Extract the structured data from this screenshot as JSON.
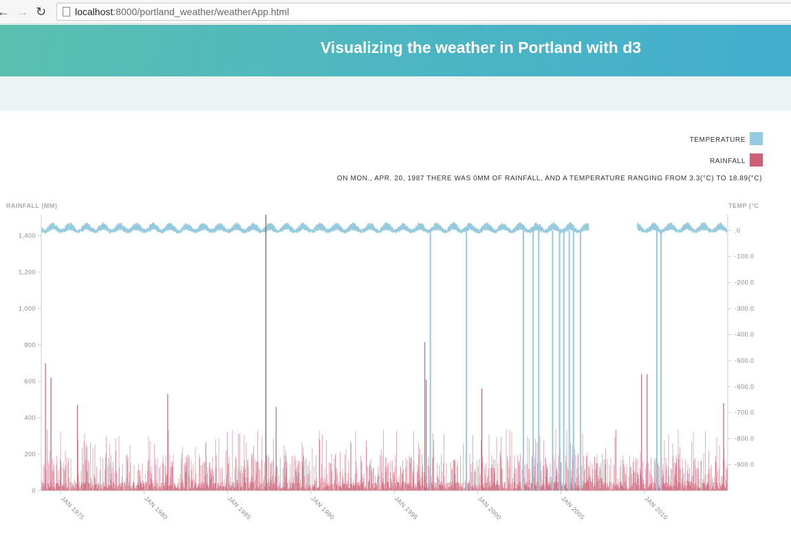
{
  "browser": {
    "url_host": "localhost",
    "url_rest": ":8000/portland_weather/weatherApp.html"
  },
  "header": {
    "title": "Visualizing the weather in Portland with d3"
  },
  "legend": {
    "temperature": {
      "label": "TEMPERATURE",
      "color": "#96cbdf"
    },
    "rainfall": {
      "label": "RAINFALL",
      "color": "#cd6078"
    }
  },
  "info": {
    "prefix": "On",
    "date": "Mon., Apr. 20, 1987",
    "mid1": "there was",
    "rain": "0mm",
    "mid2": "of rainfall, and a temperature ranging from",
    "tmin": "3.3(°C)",
    "mid3": "to",
    "tmax": "18.89(°C)"
  },
  "chart_data": {
    "type": "line",
    "y_left_label": "RAINFALL (MM)",
    "y_right_label": "TEMP (°C",
    "y_left_ticks": [
      "0",
      "200",
      "400",
      "600",
      "800",
      "1,000",
      "1,200",
      "1,400"
    ],
    "y_left_range": [
      0,
      1500
    ],
    "y_right_ticks": [
      ".0",
      "-100.0",
      "-200.0",
      "-300.0",
      "-400.0",
      "-500.0",
      "-600.0",
      "-700.0",
      "-800.0",
      "-900.0"
    ],
    "y_right_range": [
      -1000,
      50
    ],
    "x_ticks": [
      "JAN 1975",
      "JAN 1980",
      "JAN 1985",
      "JAN 1990",
      "JAN 1995",
      "JAN 2000",
      "JAN 2005",
      "JAN 2010"
    ],
    "x_range": [
      "1973-11",
      "2015-01"
    ],
    "temperature_gap": [
      "2006-09",
      "2009-08"
    ],
    "cursor_date": "1987-04-20",
    "series": [
      {
        "name": "TEMPERATURE",
        "color": "#96cbdf",
        "typical_low": 0,
        "typical_high": 25
      },
      {
        "name": "RAINFALL",
        "color": "#cd6078"
      }
    ],
    "rainfall_peaks": [
      {
        "x": "1974-02",
        "y": 700
      },
      {
        "x": "1974-06",
        "y": 620
      },
      {
        "x": "1976-01",
        "y": 470
      },
      {
        "x": "1981-06",
        "y": 530
      },
      {
        "x": "1987-12",
        "y": 460
      },
      {
        "x": "1996-11",
        "y": 815
      },
      {
        "x": "1996-12",
        "y": 610
      },
      {
        "x": "2000-04",
        "y": 560
      },
      {
        "x": "2009-11",
        "y": 640
      },
      {
        "x": "2010-03",
        "y": 640
      },
      {
        "x": "2014-10",
        "y": 480
      }
    ],
    "temperature_dropouts": [
      {
        "x": "1997-03",
        "y": -1000
      },
      {
        "x": "1999-05",
        "y": -1000
      },
      {
        "x": "2002-10",
        "y": -1000
      },
      {
        "x": "2003-05",
        "y": -1000
      },
      {
        "x": "2003-09",
        "y": -1000
      },
      {
        "x": "2004-07",
        "y": -1000
      },
      {
        "x": "2004-12",
        "y": -1000
      },
      {
        "x": "2005-03",
        "y": -1000
      },
      {
        "x": "2005-07",
        "y": -1000
      },
      {
        "x": "2005-10",
        "y": -1000
      },
      {
        "x": "2006-03",
        "y": -1000
      },
      {
        "x": "2010-10",
        "y": -1000
      },
      {
        "x": "2011-01",
        "y": -1000
      }
    ]
  }
}
